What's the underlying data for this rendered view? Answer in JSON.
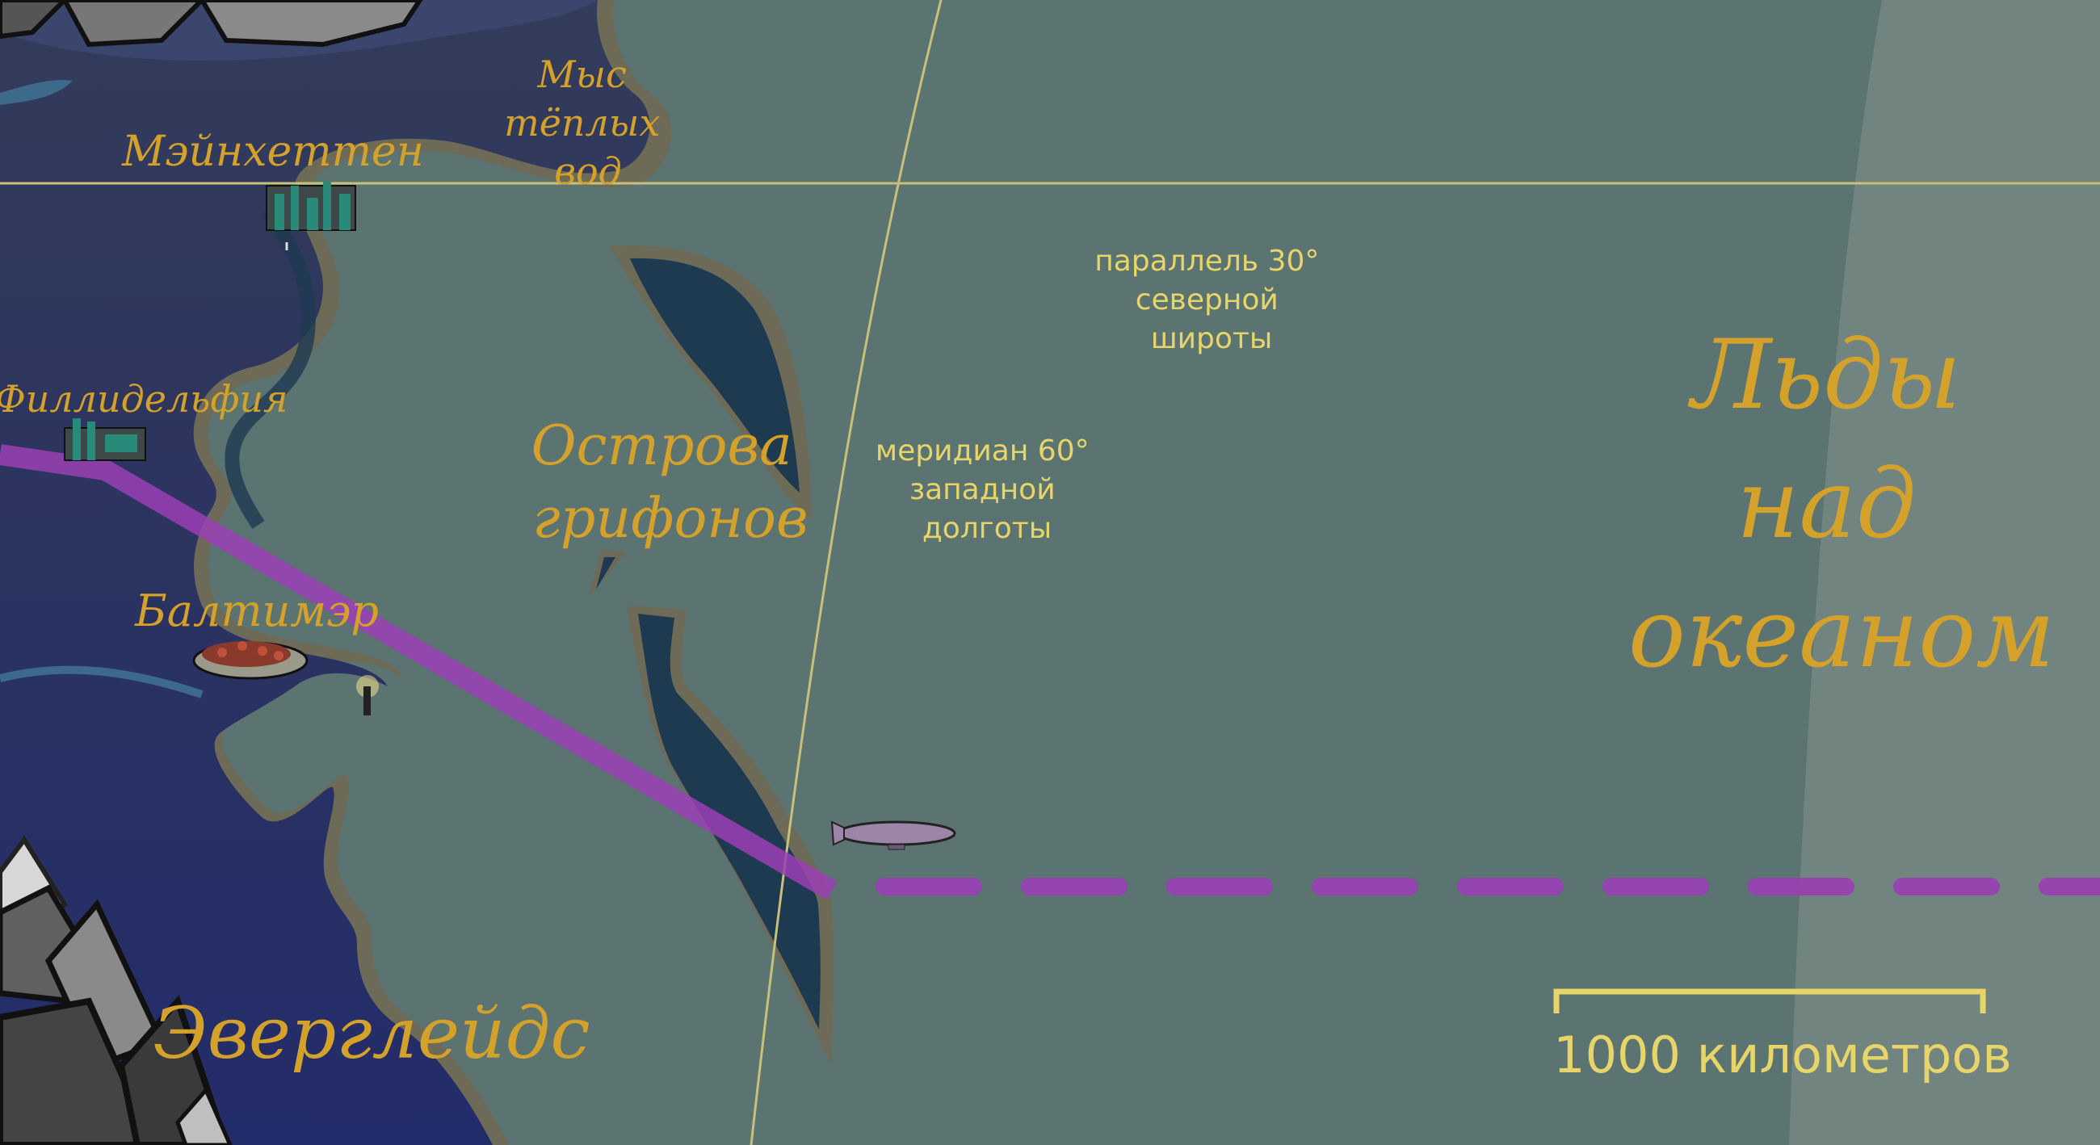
{
  "map": {
    "labels": {
      "cape": [
        "Мыс",
        "тёплых",
        "вод"
      ],
      "manhattan": "Мэйнхеттен",
      "philadelphia": "Филлидельфия",
      "baltimore": "Балтимэр",
      "griffon_islands": [
        "Острова",
        "грифонов"
      ],
      "everglades": "Эверглейдс",
      "ice": [
        "Льды",
        "над",
        "океаном"
      ],
      "parallel": [
        "параллель 30°",
        "северной",
        "широты"
      ],
      "meridian": [
        "меридиан 60°",
        "западной",
        "долготы"
      ],
      "scale": "1000 километров"
    },
    "colors": {
      "ocean": "#5b7472",
      "land": "#2a3260",
      "coast": "#6e6a58",
      "islands": "#1e3a50",
      "route": "#9b3fb5",
      "grid_lines": "#c8c07a",
      "labels_serif": "#d4a22a",
      "labels_sans": "#e8d56a",
      "ice": "#7a8a86"
    },
    "icons": [
      "city-manhattan-icon",
      "city-philadelphia-icon",
      "city-baltimore-icon",
      "lighthouse-icon",
      "airship-icon",
      "mountains-icon"
    ]
  }
}
